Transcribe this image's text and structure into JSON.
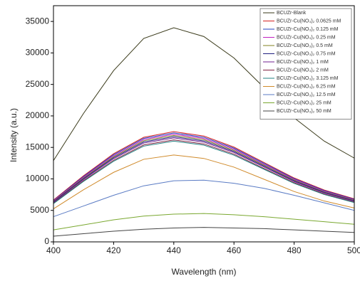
{
  "chart_data": {
    "type": "line",
    "x_label": "Wavelength (nm)",
    "y_label": "Intensity (a.u.)",
    "x": [
      400,
      410,
      420,
      430,
      440,
      450,
      460,
      470,
      480,
      490,
      500
    ],
    "xlim": [
      400,
      500
    ],
    "xticks": [
      400,
      420,
      440,
      460,
      480,
      500
    ],
    "ylim": [
      0,
      37500
    ],
    "yticks": [
      0,
      5000,
      10000,
      15000,
      20000,
      25000,
      30000,
      35000
    ],
    "grid": false,
    "legend": "upper right",
    "series": [
      {
        "name": "BCUZr-Blank",
        "color": "#3a3a1a",
        "values": [
          12900,
          20400,
          27200,
          32300,
          34000,
          32600,
          29200,
          24500,
          19700,
          16000,
          13300
        ]
      },
      {
        "name": "BCUZr-Cu(NO₃)₂ 0.0625 mM",
        "color": "#d42020",
        "values": [
          6650,
          10500,
          14000,
          16600,
          17500,
          16800,
          15050,
          12600,
          10150,
          8230,
          6830
        ]
      },
      {
        "name": "BCUZr-Cu(NO₃)₂ 0.125 mM",
        "color": "#2040c0",
        "values": [
          6570,
          10380,
          13840,
          16440,
          17300,
          16610,
          14880,
          12460,
          10030,
          8130,
          6750
        ]
      },
      {
        "name": "BCUZr-Cu(NO₃)₂ 0.25 mM",
        "color": "#c020c0",
        "values": [
          6500,
          10260,
          13680,
          16250,
          17100,
          16420,
          14710,
          12310,
          9920,
          8040,
          6670
        ]
      },
      {
        "name": "BCUZr-Cu(NO₃)₂ 0.5 mM",
        "color": "#808020",
        "values": [
          6420,
          10140,
          13520,
          16060,
          16900,
          16220,
          14530,
          12170,
          9800,
          7940,
          6590
        ]
      },
      {
        "name": "BCUZr-Cu(NO₃)₂ 0.75 mM",
        "color": "#202080",
        "values": [
          6350,
          10020,
          13360,
          15870,
          16700,
          16030,
          14360,
          12020,
          9690,
          7850,
          6510
        ]
      },
      {
        "name": "BCUZr-Cu(NO₃)₂ 1 mM",
        "color": "#702090",
        "values": [
          6270,
          9900,
          13200,
          15680,
          16500,
          15840,
          14190,
          11880,
          9570,
          7760,
          6440
        ]
      },
      {
        "name": "BCUZr-Cu(NO₃)₂ 2 mM",
        "color": "#802040",
        "values": [
          6160,
          9720,
          12960,
          15390,
          16200,
          15550,
          13930,
          11660,
          9400,
          7610,
          6320
        ]
      },
      {
        "name": "BCUZr-Cu(NO₃)₂ 3.125 mM",
        "color": "#208080",
        "values": [
          6080,
          9600,
          12800,
          15200,
          16000,
          15360,
          13760,
          11520,
          9280,
          7520,
          6240
        ]
      },
      {
        "name": "BCUZr-Cu(NO₃)₂ 6.25 mM",
        "color": "#d08a2a",
        "values": [
          5240,
          8280,
          11040,
          13110,
          13800,
          13250,
          11870,
          9940,
          8000,
          6490,
          5380
        ]
      },
      {
        "name": "BCUZr-Cu(NO₃)₂ 12.5 mM",
        "color": "#5a7bc4",
        "values": [
          4000,
          5700,
          7400,
          8900,
          9700,
          9800,
          9300,
          8500,
          7400,
          6200,
          5000
        ]
      },
      {
        "name": "BCUZr-Cu(NO₃)₂ 25 mM",
        "color": "#7aa830",
        "values": [
          1900,
          2700,
          3500,
          4100,
          4400,
          4500,
          4300,
          4000,
          3600,
          3200,
          2800
        ]
      },
      {
        "name": "BCUZr-Cu(NO₃)₂ 50 mM",
        "color": "#444444",
        "values": [
          900,
          1300,
          1700,
          2000,
          2200,
          2300,
          2200,
          2100,
          1900,
          1700,
          1500
        ]
      }
    ]
  }
}
